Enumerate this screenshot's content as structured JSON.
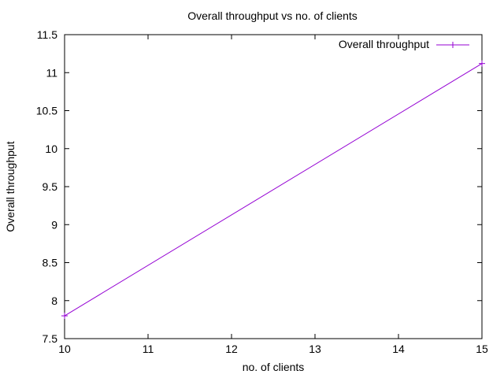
{
  "chart_data": {
    "type": "line",
    "title": "Overall throughput vs no. of clients",
    "xlabel": "no. of clients",
    "ylabel": "Overall throughput",
    "xlim": [
      10,
      15
    ],
    "ylim": [
      7.5,
      11.5
    ],
    "x_ticks": [
      10,
      11,
      12,
      13,
      14,
      15
    ],
    "y_ticks": [
      7.5,
      8,
      8.5,
      9,
      9.5,
      10,
      10.5,
      11,
      11.5
    ],
    "x_tick_labels": [
      "10",
      "11",
      "12",
      "13",
      "14",
      "15"
    ],
    "y_tick_labels": [
      "7.5",
      "8",
      "8.5",
      "9",
      "9.5",
      "10",
      "10.5",
      "11",
      "11.5"
    ],
    "grid": false,
    "legend_position": "top-right",
    "series": [
      {
        "name": "Overall throughput",
        "color": "#9400d3",
        "marker": "plus",
        "x": [
          10,
          15
        ],
        "y": [
          7.8,
          11.12
        ]
      }
    ]
  }
}
